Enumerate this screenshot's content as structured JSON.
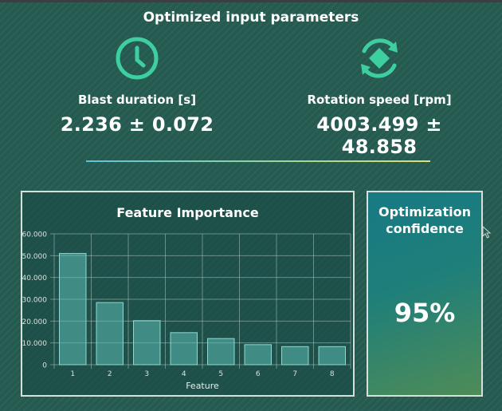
{
  "header": {
    "title": "Optimized input parameters"
  },
  "params": [
    {
      "icon": "clock-icon",
      "label": "Blast duration [s]",
      "value": "2.236 ± 0.072"
    },
    {
      "icon": "rotate-diamond-icon",
      "label": "Rotation speed [rpm]",
      "value": "4003.499 ± 48.858"
    }
  ],
  "feature_panel": {
    "title": "Feature Importance"
  },
  "confidence_panel": {
    "title_line1": "Optimization",
    "title_line2": "confidence",
    "value": "95%"
  },
  "colors": {
    "accent": "#3ecfa0",
    "bar": "#4aa9a4",
    "panel_border": "#d6e0dc"
  },
  "chart_data": {
    "type": "bar",
    "categories": [
      "1",
      "2",
      "3",
      "4",
      "5",
      "6",
      "7",
      "8"
    ],
    "values": [
      51000,
      28500,
      20200,
      14700,
      12000,
      9200,
      8300,
      8300
    ],
    "ytick_labels": [
      "60.000",
      "50.000",
      "40.000",
      "30.000",
      "20.000",
      "10.000",
      "0"
    ],
    "ytick_values": [
      60000,
      50000,
      40000,
      30000,
      20000,
      10000,
      0
    ],
    "ylim": [
      0,
      60000
    ],
    "xlabel": "Feature",
    "ylabel": "",
    "grid": true
  }
}
